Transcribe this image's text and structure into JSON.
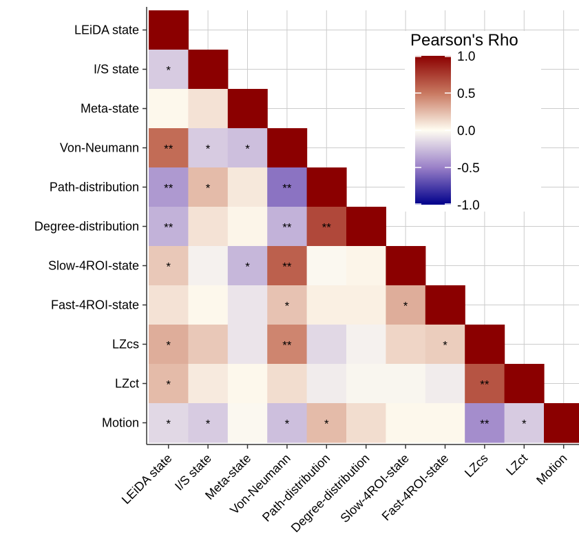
{
  "chart_data": {
    "type": "heatmap",
    "variables": [
      "LEiDA state",
      "I/S state",
      "Meta-state",
      "Von-Neumann",
      "Path-distribution",
      "Degree-distribution",
      "Slow-4ROI-state",
      "Fast-4ROI-state",
      "LZcs",
      "LZct",
      "Motion"
    ],
    "values": [
      [
        1.0
      ],
      [
        -0.2,
        1.0
      ],
      [
        0.02,
        0.1,
        1.0
      ],
      [
        0.55,
        -0.2,
        -0.25,
        1.0
      ],
      [
        -0.4,
        0.25,
        0.08,
        -0.55,
        1.0
      ],
      [
        -0.3,
        0.1,
        0.03,
        -0.3,
        0.7,
        1.0
      ],
      [
        0.2,
        -0.05,
        -0.28,
        0.6,
        -0.02,
        0.03,
        1.0
      ],
      [
        0.1,
        0.02,
        -0.1,
        0.22,
        0.05,
        0.05,
        0.3,
        1.0
      ],
      [
        0.3,
        0.2,
        -0.1,
        0.45,
        -0.15,
        -0.05,
        0.15,
        0.18,
        1.0
      ],
      [
        0.25,
        0.07,
        0.02,
        0.12,
        -0.07,
        -0.03,
        -0.03,
        -0.07,
        0.65,
        1.0
      ],
      [
        -0.15,
        -0.2,
        -0.02,
        -0.25,
        0.25,
        0.12,
        0.02,
        0.02,
        -0.45,
        -0.2,
        1.0
      ]
    ],
    "significance": [
      [
        ""
      ],
      [
        "*",
        ""
      ],
      [
        "",
        "",
        ""
      ],
      [
        "**",
        "*",
        "*",
        ""
      ],
      [
        "**",
        "*",
        "",
        "**",
        ""
      ],
      [
        "**",
        "",
        "",
        "**",
        "**",
        ""
      ],
      [
        "*",
        "",
        "*",
        "**",
        "",
        "",
        ""
      ],
      [
        "",
        "",
        "",
        "*",
        "",
        "",
        "*",
        ""
      ],
      [
        "*",
        "",
        "",
        "**",
        "",
        "",
        "",
        "*",
        ""
      ],
      [
        "*",
        "",
        "",
        "",
        "",
        "",
        "",
        "",
        "**",
        ""
      ],
      [
        "*",
        "*",
        "",
        "*",
        "*",
        "",
        "",
        "",
        "**",
        "*",
        ""
      ]
    ],
    "legend": {
      "title": "Pearson's Rho",
      "ticks": [
        1.0,
        0.5,
        0.0,
        -0.5,
        -1.0
      ],
      "tick_labels": [
        "1.0",
        "0.5",
        "0.0",
        "-0.5",
        "-1.0"
      ],
      "range": [
        -1.0,
        1.0
      ],
      "placement": "top-right"
    },
    "colors": {
      "high": "#8b0000",
      "mid": "#fffdf2",
      "low": "#00008b",
      "grid": "#cccccc",
      "axis": "#333333"
    },
    "grid": true
  }
}
